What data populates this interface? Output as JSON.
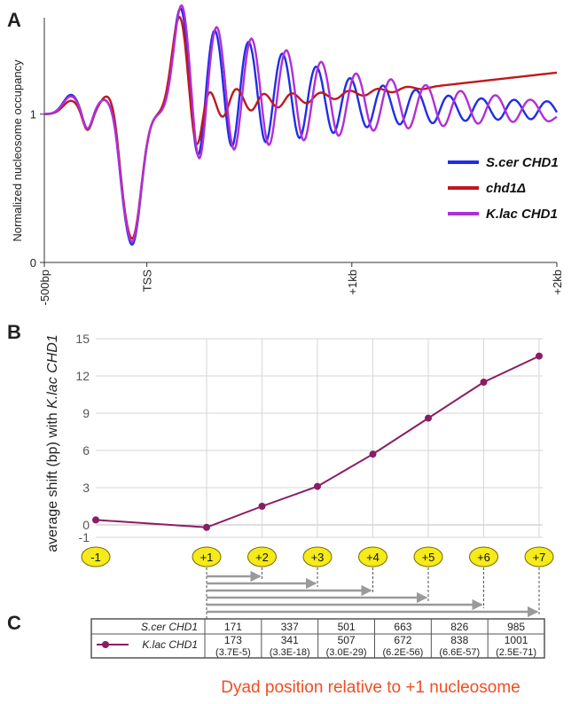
{
  "chart_data": [
    {
      "panel": "A",
      "type": "line",
      "ylabel": "Normalized nucleosome occupancy",
      "y_ticks": [
        "0",
        "1"
      ],
      "x_ticks": [
        "-500bp",
        "TSS",
        "+1kb",
        "+2kb"
      ],
      "x_tick_values": [
        -500,
        0,
        1000,
        2000
      ],
      "xlim": [
        -500,
        2000
      ],
      "ylim": [
        0,
        1.65
      ],
      "grid": false,
      "legend_position": "right",
      "series": [
        {
          "name": "S.cer CHD1",
          "color": "#1f2ee6",
          "peaks": [
            -370,
            -205,
            165,
            330,
            495,
            660,
            825,
            990,
            1150,
            1310,
            1470,
            1630,
            1790,
            1950
          ],
          "amplitudes": [
            0.13,
            0.1,
            0.72,
            0.58,
            0.5,
            0.42,
            0.33,
            0.25,
            0.2,
            0.17,
            0.13,
            0.11,
            0.1,
            0.09
          ],
          "offset": 1.0,
          "trough_at_minus_70": 0.18
        },
        {
          "name": "chd1Δ",
          "color": "#c0181b",
          "peaks": [
            -370,
            -190,
            160,
            290,
            430,
            560,
            700,
            840,
            980,
            1120,
            1260
          ],
          "amplitudes": [
            0.09,
            0.13,
            0.66,
            0.2,
            0.15,
            0.1,
            0.07,
            0.05,
            0.04,
            0.03,
            0.02
          ],
          "offset": 1.0,
          "trend_end": 1.28,
          "trough_at_minus_70": 0.22
        },
        {
          "name": "K.lac CHD1",
          "color": "#b12fd6",
          "peaks": [
            -370,
            -205,
            170,
            340,
            510,
            680,
            850,
            1020,
            1190,
            1360,
            1530,
            1700,
            1870
          ],
          "amplitudes": [
            0.12,
            0.1,
            0.74,
            0.6,
            0.52,
            0.44,
            0.36,
            0.28,
            0.24,
            0.2,
            0.16,
            0.13,
            0.1
          ],
          "offset": 1.0,
          "trough_at_minus_70": 0.2
        }
      ]
    },
    {
      "panel": "B",
      "type": "line",
      "ylabel": "average shift (bp) with K.lac CHD1",
      "ylabel_prefix": "average shift (bp) with ",
      "ylabel_italic": "K.lac CHD1",
      "y_ticks": [
        -1,
        0,
        3,
        6,
        9,
        12,
        15
      ],
      "ylim": [
        -1,
        15
      ],
      "grid": true,
      "categories": [
        "-1",
        "+1",
        "+2",
        "+3",
        "+4",
        "+5",
        "+6",
        "+7"
      ],
      "category_positions": [
        -1,
        1,
        2,
        3,
        4,
        5,
        6,
        7
      ],
      "series": [
        {
          "name": "K.lac CHD1",
          "color": "#8b1c66",
          "values": [
            0.4,
            -0.2,
            1.5,
            3.1,
            5.7,
            8.6,
            11.5,
            13.6
          ]
        }
      ]
    },
    {
      "panel": "C",
      "type": "table",
      "rows": [
        {
          "label": "S.cer CHD1",
          "values": [
            "171",
            "337",
            "501",
            "663",
            "826",
            "985"
          ],
          "pvalues": []
        },
        {
          "label": "K.lac CHD1",
          "values": [
            "173",
            "341",
            "507",
            "672",
            "838",
            "1001"
          ],
          "pvalues": [
            "(3.7E-5)",
            "(3.3E-18)",
            "(3.0E-29)",
            "(6.2E-56)",
            "(6.6E-57)",
            "(2.5E-71)"
          ]
        }
      ],
      "footer": "Dyad position relative to +1 nucleosome"
    }
  ],
  "panel_labels": [
    "A",
    "B",
    "C"
  ],
  "colors": {
    "scer": "#1f2ee6",
    "chd1": "#c0181b",
    "klac": "#b12fd6",
    "shift": "#8b1c66",
    "nuc_fill": "#f5ea1a",
    "nuc_stroke": "#7a6b00",
    "arrow": "#9a9a9a",
    "footer": "#f04e22"
  }
}
